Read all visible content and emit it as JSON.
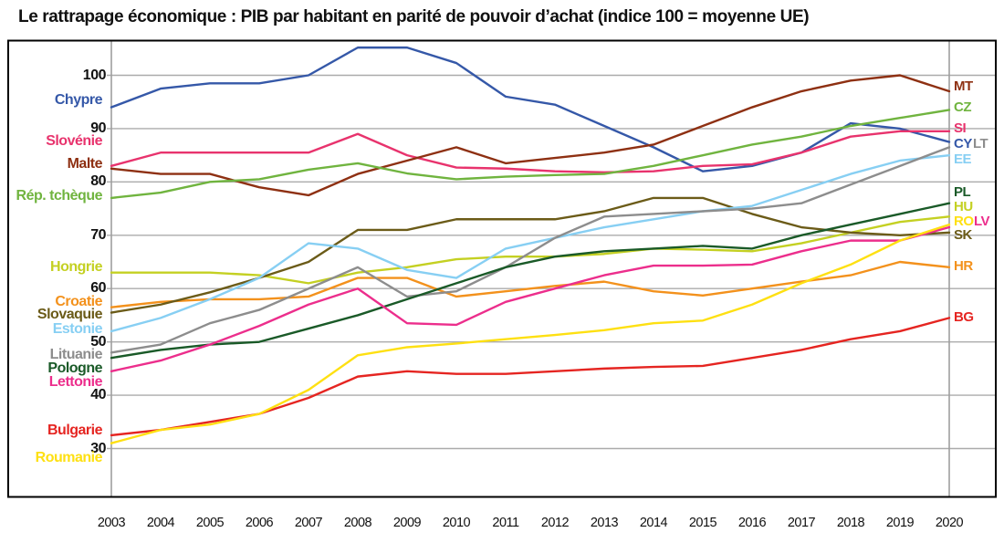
{
  "title": "Le rattrapage économique : PIB par habitant en parité de pouvoir d’achat (indice 100 = moyenne UE)",
  "chart_data": {
    "type": "line",
    "x": [
      2003,
      2004,
      2005,
      2006,
      2007,
      2008,
      2009,
      2010,
      2011,
      2012,
      2013,
      2014,
      2015,
      2016,
      2017,
      2018,
      2019,
      2020
    ],
    "xlabel": "",
    "ylabel": "",
    "ylim": [
      25,
      108
    ],
    "yticks": [
      30,
      40,
      50,
      60,
      70,
      80,
      90,
      100
    ],
    "grid": "horizontal",
    "legend_position": "left-names-right-codes",
    "series": [
      {
        "code": "CY",
        "label": "Chypre",
        "color": "#3558a8",
        "values": [
          94,
          97.5,
          98.5,
          98.5,
          100,
          105.2,
          105.2,
          102.3,
          96,
          94.5,
          90.5,
          86.5,
          82,
          83,
          85.5,
          91,
          90,
          87.5
        ]
      },
      {
        "code": "SI",
        "label": "Slovénie",
        "color": "#e8336d",
        "values": [
          83,
          85.5,
          85.5,
          85.5,
          85.5,
          89,
          85,
          82.7,
          82.5,
          82,
          81.8,
          82,
          83,
          83.3,
          85.5,
          88.5,
          89.5,
          89.5
        ]
      },
      {
        "code": "MT",
        "label": "Malte",
        "color": "#8e3012",
        "values": [
          82.5,
          81.5,
          81.5,
          79,
          77.5,
          81.5,
          84,
          86.5,
          83.5,
          84.5,
          85.5,
          87,
          90.5,
          94,
          97,
          99,
          100,
          97
        ]
      },
      {
        "code": "CZ",
        "label": "Rép. tchèque",
        "color": "#70b43f",
        "values": [
          77,
          78,
          80,
          80.5,
          82.3,
          83.5,
          81.6,
          80.5,
          81,
          81.3,
          81.5,
          83,
          85,
          87,
          88.5,
          90.5,
          92,
          93.5
        ]
      },
      {
        "code": "HU",
        "label": "Hongrie",
        "color": "#c4d022",
        "values": [
          63,
          63,
          63,
          62.5,
          61,
          63,
          64,
          65.5,
          66,
          66,
          66.5,
          67.5,
          67.3,
          67,
          68.5,
          70.5,
          72.5,
          73.5
        ]
      },
      {
        "code": "HR",
        "label": "Croatie",
        "color": "#f3911c",
        "values": [
          56.5,
          57.5,
          58,
          58,
          58.5,
          62,
          62,
          58.5,
          59.5,
          60.5,
          61.3,
          59.5,
          58.7,
          60,
          61.3,
          62.5,
          65,
          64
        ]
      },
      {
        "code": "SK",
        "label": "Slovaquie",
        "color": "#6b5b18",
        "values": [
          55.5,
          57,
          59.3,
          62,
          65,
          71,
          71,
          73,
          73,
          73,
          74.5,
          77,
          77,
          74,
          71.5,
          70.5,
          70,
          70.5
        ]
      },
      {
        "code": "EE",
        "label": "Estonie",
        "color": "#87cff3",
        "values": [
          52,
          54.5,
          58,
          62,
          68.5,
          67.5,
          63.5,
          62,
          67.5,
          69.5,
          71.5,
          73,
          74.5,
          75.5,
          78.5,
          81.5,
          84,
          85
        ]
      },
      {
        "code": "LT",
        "label": "Lituanie",
        "color": "#8d8d8d",
        "values": [
          48,
          49.5,
          53.5,
          56,
          60,
          64,
          58.5,
          59.5,
          64,
          69.5,
          73.5,
          74,
          74.5,
          75,
          76,
          79.5,
          83,
          86.5
        ]
      },
      {
        "code": "PL",
        "label": "Pologne",
        "color": "#1a5a28",
        "values": [
          47,
          48.5,
          49.5,
          50,
          52.5,
          55,
          58,
          61,
          64,
          66,
          67,
          67.5,
          68,
          67.5,
          70,
          72,
          74,
          76
        ]
      },
      {
        "code": "LV",
        "label": "Lettonie",
        "color": "#ec2e8c",
        "values": [
          44.5,
          46.5,
          49.5,
          53,
          57,
          60,
          53.5,
          53.2,
          57.5,
          60,
          62.5,
          64.3,
          64.3,
          64.5,
          67,
          69,
          69,
          71.5
        ]
      },
      {
        "code": "BG",
        "label": "Bulgarie",
        "color": "#e52521",
        "values": [
          32.5,
          33.5,
          35,
          36.5,
          39.5,
          43.5,
          44.5,
          44,
          44,
          44.5,
          45,
          45.3,
          45.5,
          47,
          48.5,
          50.5,
          52,
          54.5
        ]
      },
      {
        "code": "RO",
        "label": "Roumanie",
        "color": "#fee012",
        "values": [
          31,
          33.5,
          34.5,
          36.5,
          41,
          47.5,
          49,
          49.7,
          50.5,
          51.3,
          52.2,
          53.5,
          54,
          57,
          61,
          64.5,
          69,
          72
        ]
      }
    ]
  }
}
